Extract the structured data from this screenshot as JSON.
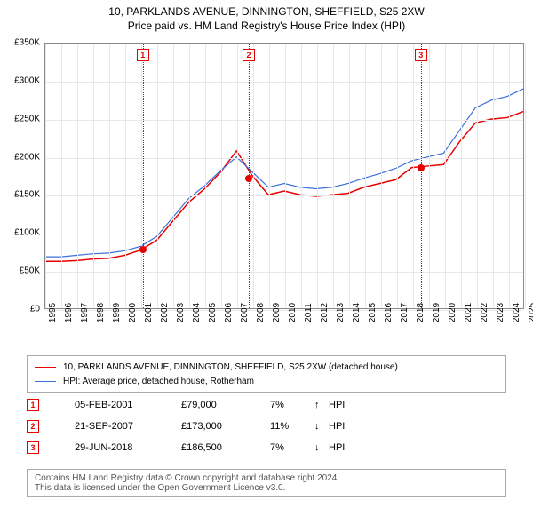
{
  "title_line1": "10, PARKLANDS AVENUE, DINNINGTON, SHEFFIELD, S25 2XW",
  "title_line2": "Price paid vs. HM Land Registry's House Price Index (HPI)",
  "chart": {
    "type": "line",
    "ylim": [
      0,
      350000
    ],
    "ytick_step": 50000,
    "ytick_labels": [
      "£0",
      "£50K",
      "£100K",
      "£150K",
      "£200K",
      "£250K",
      "£300K",
      "£350K"
    ],
    "xlim": [
      1995,
      2025
    ],
    "years": [
      1995,
      1996,
      1997,
      1998,
      1999,
      2000,
      2001,
      2002,
      2003,
      2004,
      2005,
      2006,
      2007,
      2008,
      2009,
      2010,
      2011,
      2012,
      2013,
      2014,
      2015,
      2016,
      2017,
      2018,
      2019,
      2020,
      2021,
      2022,
      2023,
      2024,
      2025
    ],
    "grid_color": "#e8e8e8",
    "background_color": "#ffffff",
    "border_color": "#888888",
    "series": [
      {
        "name": "price_paid",
        "label": "10, PARKLANDS AVENUE, DINNINGTON, SHEFFIELD, S25 2XW (detached house)",
        "color": "#e60000",
        "line_width": 1.5,
        "y": [
          62000,
          62000,
          63000,
          65000,
          66000,
          70000,
          77000,
          90000,
          115000,
          140000,
          158000,
          180000,
          208000,
          175000,
          150000,
          155000,
          150000,
          148000,
          150000,
          152000,
          160000,
          165000,
          170000,
          186000,
          188000,
          190000,
          220000,
          245000,
          250000,
          252000,
          260000
        ]
      },
      {
        "name": "hpi",
        "label": "HPI: Average price, detached house, Rotherham",
        "color": "#3b6fd6",
        "line_width": 1.2,
        "y": [
          68000,
          68000,
          70000,
          72000,
          73000,
          76000,
          82000,
          95000,
          120000,
          145000,
          162000,
          182000,
          200000,
          180000,
          160000,
          165000,
          160000,
          158000,
          160000,
          165000,
          172000,
          178000,
          185000,
          195000,
          200000,
          205000,
          235000,
          265000,
          275000,
          280000,
          290000
        ]
      }
    ],
    "callouts": [
      {
        "n": "1",
        "year": 2001.1,
        "color": "#e60000"
      },
      {
        "n": "2",
        "year": 2007.72,
        "color": "#e60000"
      },
      {
        "n": "3",
        "year": 2018.49,
        "color": "#e60000"
      }
    ],
    "markers": [
      {
        "year": 2001.1,
        "value": 79000,
        "color": "#e60000"
      },
      {
        "year": 2007.72,
        "value": 173000,
        "color": "#e60000"
      },
      {
        "year": 2018.49,
        "value": 186500,
        "color": "#e60000"
      }
    ]
  },
  "legend": {
    "rows": [
      {
        "color": "#e60000",
        "width": 1.5,
        "label": "10, PARKLANDS AVENUE, DINNINGTON, SHEFFIELD, S25 2XW (detached house)"
      },
      {
        "color": "#3b6fd6",
        "width": 1.2,
        "label": "HPI: Average price, detached house, Rotherham"
      }
    ]
  },
  "events": [
    {
      "n": "1",
      "color": "#e60000",
      "date": "05-FEB-2001",
      "price": "£79,000",
      "pct": "7%",
      "arrow": "↑",
      "basis": "HPI"
    },
    {
      "n": "2",
      "color": "#e60000",
      "date": "21-SEP-2007",
      "price": "£173,000",
      "pct": "11%",
      "arrow": "↓",
      "basis": "HPI"
    },
    {
      "n": "3",
      "color": "#e60000",
      "date": "29-JUN-2018",
      "price": "£186,500",
      "pct": "7%",
      "arrow": "↓",
      "basis": "HPI"
    }
  ],
  "footer_line1": "Contains HM Land Registry data © Crown copyright and database right 2024.",
  "footer_line2": "This data is licensed under the Open Government Licence v3.0."
}
